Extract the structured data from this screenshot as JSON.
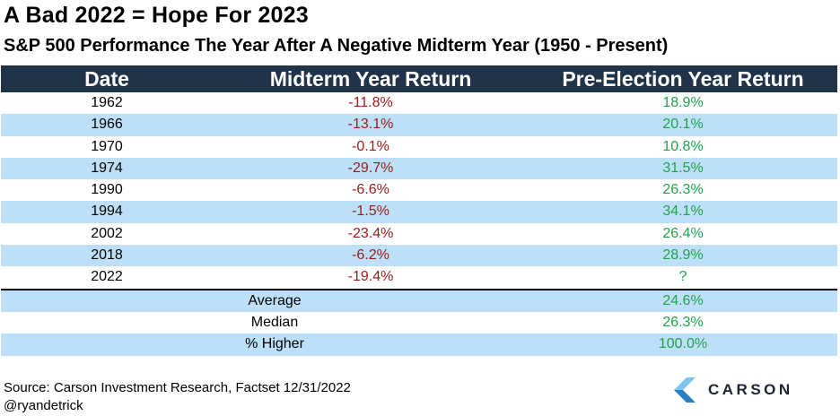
{
  "title": "A Bad 2022 = Hope For 2023",
  "subtitle": "S&P 500 Performance The Year After A Negative Midterm Year (1950 - Present)",
  "chart_data": {
    "type": "table",
    "columns": [
      "Date",
      "Midterm Year Return",
      "Pre-Election Year Return"
    ],
    "rows": [
      {
        "date": "1962",
        "midterm": "-11.8%",
        "preelection": "18.9%"
      },
      {
        "date": "1966",
        "midterm": "-13.1%",
        "preelection": "20.1%"
      },
      {
        "date": "1970",
        "midterm": "-0.1%",
        "preelection": "10.8%"
      },
      {
        "date": "1974",
        "midterm": "-29.7%",
        "preelection": "31.5%"
      },
      {
        "date": "1990",
        "midterm": "-6.6%",
        "preelection": "26.3%"
      },
      {
        "date": "1994",
        "midterm": "-1.5%",
        "preelection": "34.1%"
      },
      {
        "date": "2002",
        "midterm": "-23.4%",
        "preelection": "26.4%"
      },
      {
        "date": "2018",
        "midterm": "-6.2%",
        "preelection": "28.9%"
      },
      {
        "date": "2022",
        "midterm": "-19.4%",
        "preelection": "?"
      }
    ],
    "summary": [
      {
        "label": "Average",
        "value": "24.6%"
      },
      {
        "label": "Median",
        "value": "26.3%"
      },
      {
        "label": "% Higher",
        "value": "100.0%"
      }
    ]
  },
  "colors": {
    "header_bg": "#203349",
    "band_blue": "#bde0f8",
    "negative": "#9c1a1a",
    "positive": "#1fa34a",
    "logo_dark": "#1c2433",
    "logo_blue": "#2a7fc1",
    "logo_light": "#7cc3ee"
  },
  "footer": {
    "source": "Source: Carson Investment Research, Factset 12/31/2022",
    "handle": "@ryandetrick",
    "logo_text": "CARSON"
  }
}
